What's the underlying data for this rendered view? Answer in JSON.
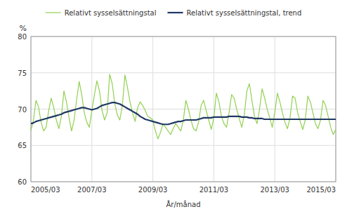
{
  "chart_data": {
    "type": "line",
    "xlabel": "År/månad",
    "ylabel": "%",
    "categories": [
      "2005/03",
      null,
      null,
      null,
      null,
      null,
      null,
      null,
      null,
      null,
      null,
      null,
      null,
      null,
      null,
      null,
      null,
      null,
      null,
      null,
      null,
      null,
      null,
      null,
      "2007/03",
      null,
      null,
      null,
      null,
      null,
      null,
      null,
      null,
      null,
      null,
      null,
      null,
      null,
      null,
      null,
      null,
      null,
      null,
      null,
      null,
      null,
      null,
      null,
      "2009/03",
      null,
      null,
      null,
      null,
      null,
      null,
      null,
      null,
      null,
      null,
      null,
      null,
      null,
      null,
      null,
      null,
      null,
      null,
      null,
      null,
      null,
      null,
      null,
      "2011/03",
      null,
      null,
      null,
      null,
      null,
      null,
      null,
      null,
      null,
      null,
      null,
      null,
      null,
      null,
      null,
      null,
      null,
      null,
      null,
      null,
      null,
      null,
      null,
      "2013/03",
      null,
      null,
      null,
      null,
      null,
      null,
      null,
      null,
      null,
      null,
      null,
      null,
      null,
      null,
      null,
      null,
      null,
      null,
      null,
      null,
      null,
      null,
      null,
      "2015/03"
    ],
    "series": [
      {
        "name": "Relativt sysselsättningstal",
        "color": "#92d050",
        "values": [
          67.0,
          68.5,
          71.2,
          70.3,
          68.2,
          67.0,
          67.5,
          69.8,
          71.5,
          70.2,
          68.5,
          67.3,
          69.0,
          72.5,
          71.0,
          68.8,
          67.0,
          68.5,
          71.3,
          73.8,
          72.0,
          69.5,
          68.2,
          67.5,
          69.8,
          72.0,
          73.9,
          72.5,
          69.8,
          68.5,
          69.5,
          74.8,
          73.5,
          70.8,
          69.2,
          68.5,
          70.5,
          74.7,
          73.0,
          71.0,
          69.5,
          68.3,
          70.2,
          71.0,
          70.5,
          69.8,
          69.0,
          68.8,
          68.5,
          67.0,
          65.9,
          66.8,
          68.0,
          67.5,
          67.0,
          66.5,
          67.3,
          68.0,
          67.5,
          67.0,
          68.5,
          71.2,
          70.0,
          68.5,
          67.3,
          67.0,
          68.2,
          70.5,
          71.2,
          69.8,
          68.5,
          67.2,
          68.8,
          72.2,
          71.0,
          69.0,
          68.0,
          67.5,
          69.5,
          72.0,
          71.5,
          70.0,
          68.7,
          67.5,
          69.2,
          72.5,
          73.5,
          71.2,
          69.0,
          68.0,
          70.0,
          72.8,
          71.5,
          70.0,
          68.8,
          67.5,
          69.5,
          72.2,
          71.0,
          69.5,
          68.2,
          67.3,
          68.8,
          71.8,
          71.5,
          69.5,
          68.3,
          67.2,
          68.5,
          71.8,
          71.0,
          69.5,
          68.0,
          67.3,
          68.5,
          71.2,
          70.5,
          69.0,
          67.5,
          66.5,
          67.2
        ]
      },
      {
        "name": "Relativt sysselsättningstal, trend",
        "color": "#1f3864",
        "values": [
          68.0,
          68.1,
          68.3,
          68.4,
          68.5,
          68.6,
          68.7,
          68.8,
          68.9,
          69.0,
          69.1,
          69.2,
          69.3,
          69.5,
          69.6,
          69.7,
          69.8,
          69.9,
          70.0,
          70.1,
          70.2,
          70.2,
          70.1,
          70.0,
          69.9,
          70.0,
          70.1,
          70.3,
          70.5,
          70.6,
          70.7,
          70.8,
          70.9,
          70.9,
          70.8,
          70.7,
          70.5,
          70.3,
          70.1,
          69.9,
          69.7,
          69.5,
          69.3,
          69.0,
          68.8,
          68.6,
          68.5,
          68.4,
          68.3,
          68.2,
          68.1,
          68.0,
          67.9,
          67.9,
          67.9,
          68.0,
          68.1,
          68.2,
          68.3,
          68.3,
          68.4,
          68.5,
          68.5,
          68.5,
          68.5,
          68.5,
          68.6,
          68.7,
          68.8,
          68.8,
          68.8,
          68.8,
          68.9,
          68.9,
          68.9,
          68.9,
          68.9,
          68.9,
          69.0,
          69.0,
          69.0,
          69.0,
          69.0,
          68.9,
          68.9,
          68.9,
          68.8,
          68.8,
          68.7,
          68.7,
          68.7,
          68.7,
          68.6,
          68.6,
          68.6,
          68.6,
          68.6,
          68.6,
          68.6,
          68.6,
          68.6,
          68.6,
          68.6,
          68.6,
          68.6,
          68.6,
          68.6,
          68.6,
          68.6,
          68.6,
          68.6,
          68.6,
          68.6,
          68.6,
          68.6,
          68.6,
          68.6,
          68.6,
          68.6,
          68.6,
          68.6
        ]
      }
    ],
    "ylim": [
      60,
      80
    ],
    "yticks": [
      60,
      65,
      70,
      75,
      80
    ],
    "grid": true,
    "legend": "top"
  }
}
